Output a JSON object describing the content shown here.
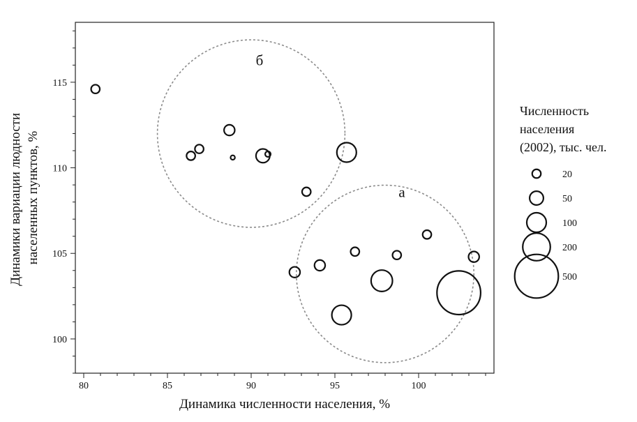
{
  "chart_data": {
    "type": "scatter",
    "subtype": "bubble",
    "xlabel": "Динамика численности населения, %",
    "ylabel_lines": [
      "Динамики вариации людности",
      "населенных пунктов, %"
    ],
    "xlim": [
      79.5,
      104.5
    ],
    "ylim": [
      98,
      118.5
    ],
    "x_ticks": [
      80,
      85,
      90,
      95,
      100
    ],
    "y_ticks": [
      100,
      105,
      110,
      115
    ],
    "x_minor_step": 1,
    "y_minor_step": 1,
    "grid": false,
    "legend": {
      "position": "right",
      "title_lines": [
        "Численность",
        "населения",
        "(2002), тыс. чел."
      ],
      "entries": [
        {
          "label": "20",
          "value": 20
        },
        {
          "label": "50",
          "value": 50
        },
        {
          "label": "100",
          "value": 100
        },
        {
          "label": "200",
          "value": 200
        },
        {
          "label": "500",
          "value": 500
        }
      ]
    },
    "clusters": [
      {
        "label": "а",
        "center": [
          98,
          103.8
        ],
        "radius": 5.3,
        "label_pos": [
          99,
          108.3
        ]
      },
      {
        "label": "б",
        "center": [
          90,
          112
        ],
        "radius": 5.6,
        "label_pos": [
          90.5,
          116
        ]
      }
    ],
    "points": [
      {
        "x": 80.7,
        "y": 114.6,
        "size": 20
      },
      {
        "x": 86.4,
        "y": 110.7,
        "size": 20
      },
      {
        "x": 86.9,
        "y": 111.1,
        "size": 20
      },
      {
        "x": 88.7,
        "y": 112.2,
        "size": 30
      },
      {
        "x": 88.9,
        "y": 110.6,
        "size": 5
      },
      {
        "x": 90.7,
        "y": 110.7,
        "size": 50
      },
      {
        "x": 91.0,
        "y": 110.8,
        "size": 8
      },
      {
        "x": 93.3,
        "y": 108.6,
        "size": 20
      },
      {
        "x": 95.7,
        "y": 110.9,
        "size": 100
      },
      {
        "x": 92.6,
        "y": 103.9,
        "size": 30
      },
      {
        "x": 94.1,
        "y": 104.3,
        "size": 30
      },
      {
        "x": 95.4,
        "y": 101.4,
        "size": 100
      },
      {
        "x": 96.2,
        "y": 105.1,
        "size": 20
      },
      {
        "x": 97.8,
        "y": 103.4,
        "size": 120
      },
      {
        "x": 98.7,
        "y": 104.9,
        "size": 20
      },
      {
        "x": 100.5,
        "y": 106.1,
        "size": 20
      },
      {
        "x": 102.4,
        "y": 102.7,
        "size": 500
      },
      {
        "x": 103.3,
        "y": 104.8,
        "size": 30
      }
    ]
  }
}
